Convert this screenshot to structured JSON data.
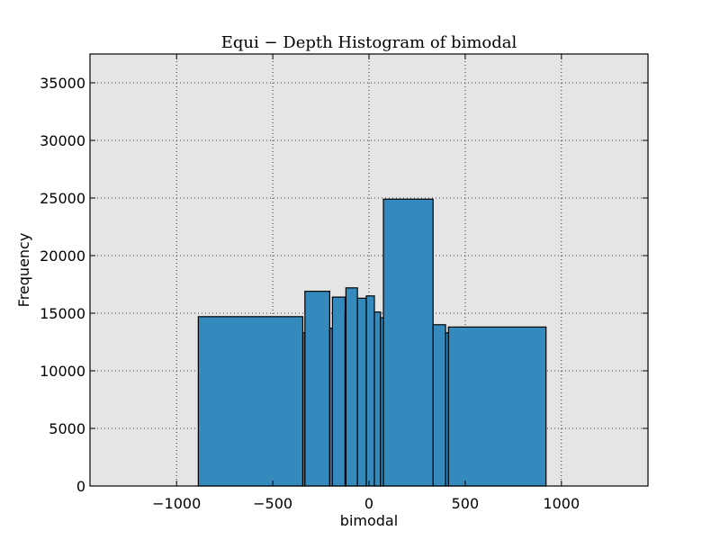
{
  "chart_data": {
    "type": "bar",
    "title": "Equi − Depth Histogram of bimodal",
    "xlabel": "bimodal",
    "ylabel": "Frequency",
    "xlim": [
      -1450,
      1450
    ],
    "ylim": [
      0,
      37500
    ],
    "xticks": [
      -1000,
      -500,
      0,
      500,
      1000
    ],
    "xtick_labels": [
      "−1000",
      "−500",
      "0",
      "500",
      "1000"
    ],
    "yticks": [
      0,
      5000,
      10000,
      15000,
      20000,
      25000,
      30000,
      35000
    ],
    "ytick_labels": [
      "0",
      "5000",
      "10000",
      "15000",
      "20000",
      "25000",
      "30000",
      "35000"
    ],
    "grid": true,
    "colors": {
      "bar": "#348abd",
      "plot_bg": "#e5e5e5",
      "edge": "#000000"
    },
    "bins": [
      {
        "x0": -887,
        "x1": -344,
        "value": 14700
      },
      {
        "x0": -344,
        "x1": -333,
        "value": 13300
      },
      {
        "x0": -333,
        "x1": -204,
        "value": 16900
      },
      {
        "x0": -204,
        "x1": -190,
        "value": 13700
      },
      {
        "x0": -190,
        "x1": -124,
        "value": 16400
      },
      {
        "x0": -124,
        "x1": -120,
        "value": 15000
      },
      {
        "x0": -120,
        "x1": -60,
        "value": 17200
      },
      {
        "x0": -60,
        "x1": -14,
        "value": 16300
      },
      {
        "x0": -14,
        "x1": 28,
        "value": 16500
      },
      {
        "x0": 28,
        "x1": 60,
        "value": 15100
      },
      {
        "x0": 60,
        "x1": 75,
        "value": 14600
      },
      {
        "x0": 75,
        "x1": 333,
        "value": 24900
      },
      {
        "x0": 333,
        "x1": 398,
        "value": 14000
      },
      {
        "x0": 398,
        "x1": 413,
        "value": 13300
      },
      {
        "x0": 413,
        "x1": 920,
        "value": 13800
      }
    ]
  }
}
